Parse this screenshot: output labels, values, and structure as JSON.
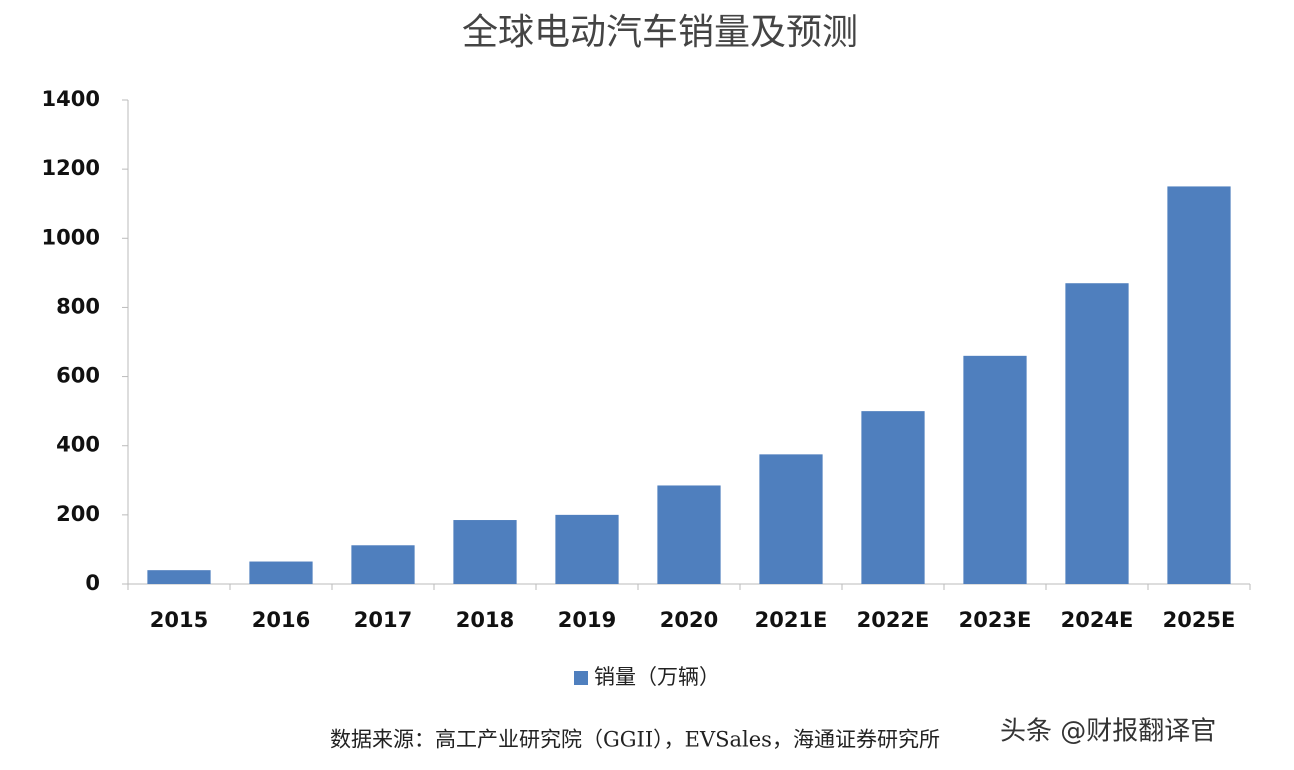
{
  "chart_data": {
    "type": "bar",
    "title": "全球电动汽车销量及预测",
    "categories": [
      "2015",
      "2016",
      "2017",
      "2018",
      "2019",
      "2020",
      "2021E",
      "2022E",
      "2023E",
      "2024E",
      "2025E"
    ],
    "series": [
      {
        "name": "销量（万辆）",
        "color": "#4f7fbe",
        "values": [
          40,
          65,
          112,
          185,
          200,
          285,
          375,
          500,
          660,
          870,
          1150
        ]
      }
    ],
    "ylim": [
      0,
      1400
    ],
    "yticks": [
      0,
      200,
      400,
      600,
      800,
      1000,
      1200,
      1400
    ],
    "source": "数据来源：高工产业研究院（GGII），EVSales，海通证券研究所",
    "watermark": "头条 @财报翻译官"
  }
}
